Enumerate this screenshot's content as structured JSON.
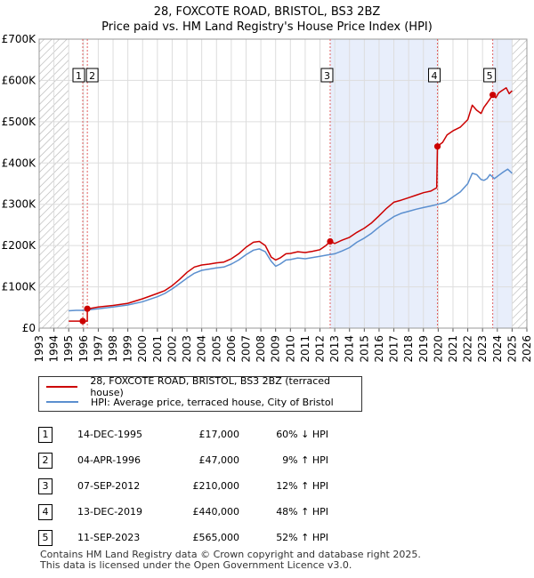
{
  "header": {
    "title": "28, FOXCOTE ROAD, BRISTOL, BS3 2BZ",
    "subtitle": "Price paid vs. HM Land Registry's House Price Index (HPI)"
  },
  "legend": {
    "property": "28, FOXCOTE ROAD, BRISTOL, BS3 2BZ (terraced house)",
    "hpi": "HPI: Average price, terraced house, City of Bristol"
  },
  "colors": {
    "property": "#cc0000",
    "hpi": "#5b8fcf",
    "hatch": "#b0b0b0",
    "shade": "#e8eefb",
    "marker_line": "#e06060"
  },
  "sales": [
    {
      "num": "1",
      "date": "14-DEC-1995",
      "price": "£17,000",
      "hpi": "60% ↓ HPI"
    },
    {
      "num": "2",
      "date": "04-APR-1996",
      "price": "£47,000",
      "hpi": "9% ↑ HPI"
    },
    {
      "num": "3",
      "date": "07-SEP-2012",
      "price": "£210,000",
      "hpi": "12% ↑ HPI"
    },
    {
      "num": "4",
      "date": "13-DEC-2019",
      "price": "£440,000",
      "hpi": "48% ↑ HPI"
    },
    {
      "num": "5",
      "date": "11-SEP-2023",
      "price": "£565,000",
      "hpi": "52% ↑ HPI"
    }
  ],
  "footer": {
    "line1": "Contains HM Land Registry data © Crown copyright and database right 2025.",
    "line2": "This data is licensed under the Open Government Licence v3.0."
  },
  "chart_data": {
    "type": "line",
    "title": "28, FOXCOTE ROAD, BRISTOL, BS3 2BZ",
    "subtitle": "Price paid vs. HM Land Registry's House Price Index (HPI)",
    "xlim": [
      1993,
      2026
    ],
    "ylim": [
      0,
      700000
    ],
    "x_ticks": [
      "1993",
      "1994",
      "1995",
      "1996",
      "1997",
      "1998",
      "1999",
      "2000",
      "2001",
      "2002",
      "2003",
      "2004",
      "2005",
      "2006",
      "2007",
      "2008",
      "2009",
      "2010",
      "2011",
      "2012",
      "2013",
      "2014",
      "2015",
      "2016",
      "2017",
      "2018",
      "2019",
      "2020",
      "2021",
      "2022",
      "2023",
      "2024",
      "2025",
      "2026"
    ],
    "y_ticks": [
      0,
      100000,
      200000,
      300000,
      400000,
      500000,
      600000,
      700000
    ],
    "y_tick_labels": [
      "£0",
      "£100K",
      "£200K",
      "£300K",
      "£400K",
      "£500K",
      "£600K",
      "£700K"
    ],
    "hatch_before": 1995.0,
    "hatch_after": 2025.0,
    "shaded_periods": [
      [
        2012.7,
        2019.95
      ],
      [
        2023.7,
        2025.0
      ]
    ],
    "markers": [
      {
        "label": "1",
        "x": 1995.95,
        "y": 17000
      },
      {
        "label": "2",
        "x": 1996.26,
        "y": 47000
      },
      {
        "label": "3",
        "x": 2012.69,
        "y": 210000
      },
      {
        "label": "4",
        "x": 2019.95,
        "y": 440000
      },
      {
        "label": "5",
        "x": 2023.69,
        "y": 565000
      }
    ],
    "series": [
      {
        "name": "28, FOXCOTE ROAD, BRISTOL, BS3 2BZ (terraced house)",
        "x": [
          1995.0,
          1995.95,
          1995.95,
          1996.26,
          1996.26,
          1996.5,
          1997,
          1998,
          1999,
          2000,
          2001,
          2001.5,
          2002,
          2002.5,
          2003,
          2003.5,
          2004,
          2004.5,
          2005,
          2005.5,
          2006,
          2006.5,
          2007,
          2007.5,
          2007.9,
          2008.3,
          2008.7,
          2009.0,
          2009.3,
          2009.7,
          2010,
          2010.5,
          2011,
          2011.5,
          2012,
          2012.4,
          2012.69,
          2013,
          2013.5,
          2014,
          2014.5,
          2015,
          2015.5,
          2016,
          2016.5,
          2017,
          2017.5,
          2018,
          2018.5,
          2019,
          2019.5,
          2019.9,
          2019.95,
          2020,
          2020.3,
          2020.6,
          2021,
          2021.5,
          2022,
          2022.3,
          2022.6,
          2022.9,
          2023.1,
          2023.3,
          2023.5,
          2023.69,
          2023.9,
          2024.1,
          2024.3,
          2024.6,
          2024.8,
          2025.0
        ],
        "y": [
          17000,
          17000,
          17000,
          17000,
          47000,
          48000,
          51000,
          55000,
          60000,
          71000,
          84000,
          91000,
          103000,
          118000,
          135000,
          148000,
          153000,
          155000,
          158000,
          160000,
          168000,
          180000,
          196000,
          208000,
          210000,
          200000,
          172000,
          165000,
          170000,
          180000,
          181000,
          185000,
          183000,
          186000,
          190000,
          200000,
          210000,
          205000,
          213000,
          220000,
          232000,
          242000,
          255000,
          272000,
          290000,
          305000,
          310000,
          316000,
          322000,
          328000,
          332000,
          340000,
          440000,
          442000,
          450000,
          468000,
          478000,
          487000,
          505000,
          540000,
          528000,
          520000,
          535000,
          545000,
          555000,
          565000,
          558000,
          570000,
          575000,
          582000,
          568000,
          575000
        ]
      },
      {
        "name": "HPI: Average price, terraced house, City of Bristol",
        "x": [
          1995.0,
          1995.5,
          1996,
          1996.5,
          1997,
          1998,
          1999,
          2000,
          2001,
          2001.5,
          2002,
          2002.5,
          2003,
          2003.5,
          2004,
          2004.5,
          2005,
          2005.5,
          2006,
          2006.5,
          2007,
          2007.5,
          2007.9,
          2008.3,
          2008.7,
          2009.0,
          2009.3,
          2009.7,
          2010,
          2010.5,
          2011,
          2011.5,
          2012,
          2012.5,
          2013,
          2013.5,
          2014,
          2014.5,
          2015,
          2015.5,
          2016,
          2016.5,
          2017,
          2017.5,
          2018,
          2018.5,
          2019,
          2019.5,
          2020,
          2020.5,
          2021,
          2021.5,
          2022,
          2022.3,
          2022.6,
          2022.9,
          2023.1,
          2023.3,
          2023.5,
          2023.8,
          2024.1,
          2024.4,
          2024.7,
          2025.0
        ],
        "y": [
          42000,
          43000,
          43000,
          45000,
          47000,
          51000,
          56000,
          64000,
          76000,
          84000,
          95000,
          108000,
          121000,
          133000,
          140000,
          143000,
          146000,
          148000,
          155000,
          165000,
          178000,
          189000,
          192000,
          185000,
          162000,
          150000,
          155000,
          165000,
          166000,
          170000,
          168000,
          171000,
          174000,
          177000,
          180000,
          187000,
          195000,
          208000,
          218000,
          230000,
          245000,
          258000,
          270000,
          278000,
          283000,
          288000,
          292000,
          296000,
          300000,
          305000,
          318000,
          330000,
          350000,
          375000,
          372000,
          360000,
          358000,
          362000,
          372000,
          362000,
          370000,
          378000,
          385000,
          375000
        ]
      }
    ]
  }
}
